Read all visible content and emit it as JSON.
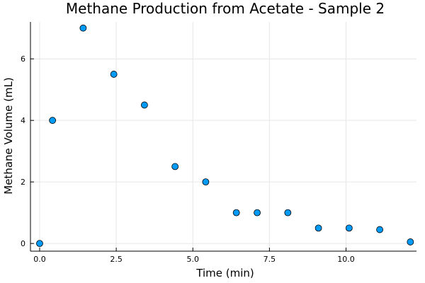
{
  "chart_data": {
    "type": "scatter",
    "title": "Methane Production from Acetate - Sample 2",
    "xlabel": "Time (min)",
    "ylabel": "Methane Volume (mL)",
    "xlim": [
      -0.3,
      12.3
    ],
    "ylim": [
      -0.25,
      7.2
    ],
    "xticks": [
      0.0,
      2.5,
      5.0,
      7.5,
      10.0
    ],
    "xtick_labels": [
      "0.0",
      "2.5",
      "5.0",
      "7.5",
      "10.0"
    ],
    "yticks": [
      0,
      2,
      4,
      6
    ],
    "ytick_labels": [
      "0",
      "2",
      "4",
      "6"
    ],
    "grid": true,
    "legend": "none",
    "marker_color": "#009af9",
    "series": [
      {
        "x": [
          0.0,
          0.42,
          1.42,
          2.42,
          3.42,
          4.42,
          5.42,
          6.42,
          7.1,
          8.1,
          9.1,
          10.1,
          11.1,
          12.1
        ],
        "y": [
          0.0,
          4.0,
          7.0,
          5.5,
          4.5,
          2.5,
          2.0,
          1.0,
          1.0,
          1.0,
          0.5,
          0.5,
          0.45,
          0.05
        ]
      }
    ]
  }
}
